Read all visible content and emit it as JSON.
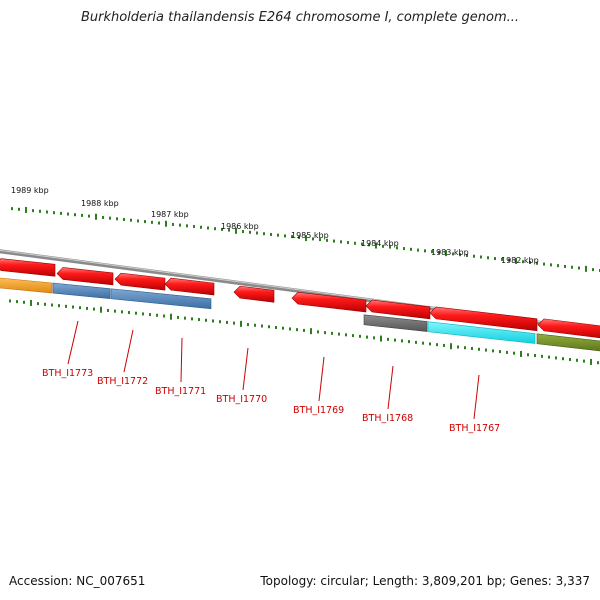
{
  "title": "Burkholderia thailandensis E264 chromosome I, complete genom...",
  "footer": {
    "accession": "Accession: NC_007651",
    "summary": "Topology: circular; Length: 3,809,201 bp; Genes: 3,337"
  },
  "scale_labels": [
    "1989 kbp",
    "1988 kbp",
    "1987 kbp",
    "1986 kbp",
    "1985 kbp",
    "1984 kbp",
    "1983 kbp",
    "1982 kbp"
  ],
  "gene_labels": [
    "BTH_I1773",
    "BTH_I1772",
    "BTH_I1771",
    "BTH_I1770",
    "BTH_I1769",
    "BTH_I1768",
    "BTH_I1767"
  ],
  "colors": {
    "backbone": "#8a8a8a",
    "gene_arrow": "#ee1111",
    "tick": "#2e7d1e",
    "label": "#cc0000",
    "cog_orange": "#f39c1e",
    "cog_steelblue": "#4a7fb5",
    "cog_gray": "#6b6b6b",
    "cog_cyan": "#19e6f0",
    "cog_olive": "#6e8a1e"
  }
}
